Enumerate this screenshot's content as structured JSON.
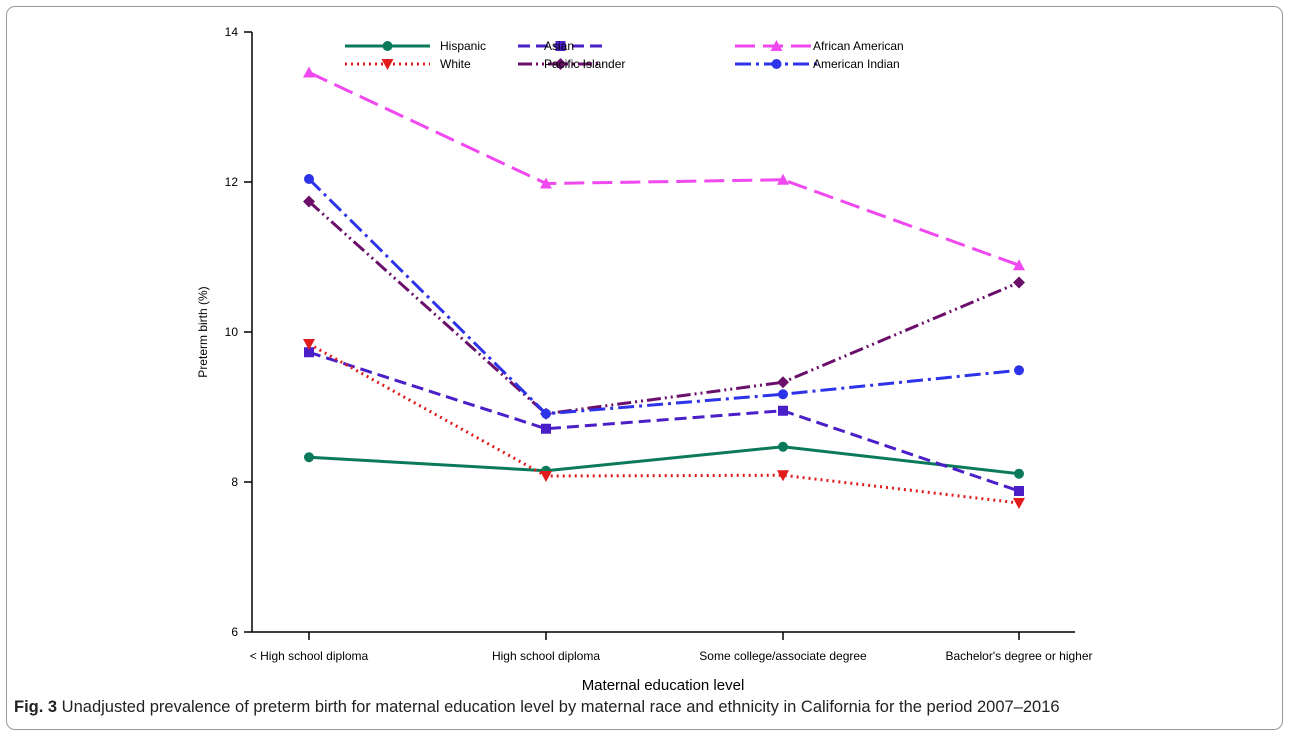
{
  "figure": {
    "label": "Fig. 3",
    "caption": " Unadjusted prevalence of preterm birth for maternal education level by maternal race and ethnicity in California for the period 2007–2016"
  },
  "chart_data": {
    "type": "line",
    "xlabel": "Maternal education level",
    "ylabel": "Preterm birth (%)",
    "categories": [
      "< High school diploma",
      "High school diploma",
      "Some college/associate degree",
      "Bachelor's degree or higher"
    ],
    "ylim": [
      6,
      14
    ],
    "yticks": [
      6,
      8,
      10,
      12,
      14
    ],
    "legend_position": "top",
    "grid": false,
    "series": [
      {
        "name": "Hispanic",
        "values": [
          8.33,
          8.15,
          8.47,
          8.11
        ],
        "color": "#0a7a5a",
        "dash": "",
        "marker": "circle"
      },
      {
        "name": "Asian",
        "values": [
          9.73,
          8.71,
          8.95,
          7.88
        ],
        "color": "#4b1fc7",
        "dash": "12 6",
        "marker": "square"
      },
      {
        "name": "African American",
        "values": [
          13.46,
          11.98,
          12.03,
          10.89
        ],
        "color": "#f049f0",
        "dash": "20 8",
        "marker": "triangle-up"
      },
      {
        "name": "White",
        "values": [
          9.84,
          8.08,
          8.09,
          7.72
        ],
        "color": "#e01c1c",
        "dash": "2 4",
        "marker": "triangle-down"
      },
      {
        "name": "Pacific Islander",
        "values": [
          11.74,
          8.91,
          9.33,
          10.66
        ],
        "color": "#6b0f6b",
        "dash": "14 4 2 4 2 4",
        "marker": "diamond"
      },
      {
        "name": "American Indian",
        "values": [
          12.04,
          8.91,
          9.17,
          9.49
        ],
        "color": "#2d33e8",
        "dash": "16 5 3 5",
        "marker": "circle"
      }
    ]
  }
}
